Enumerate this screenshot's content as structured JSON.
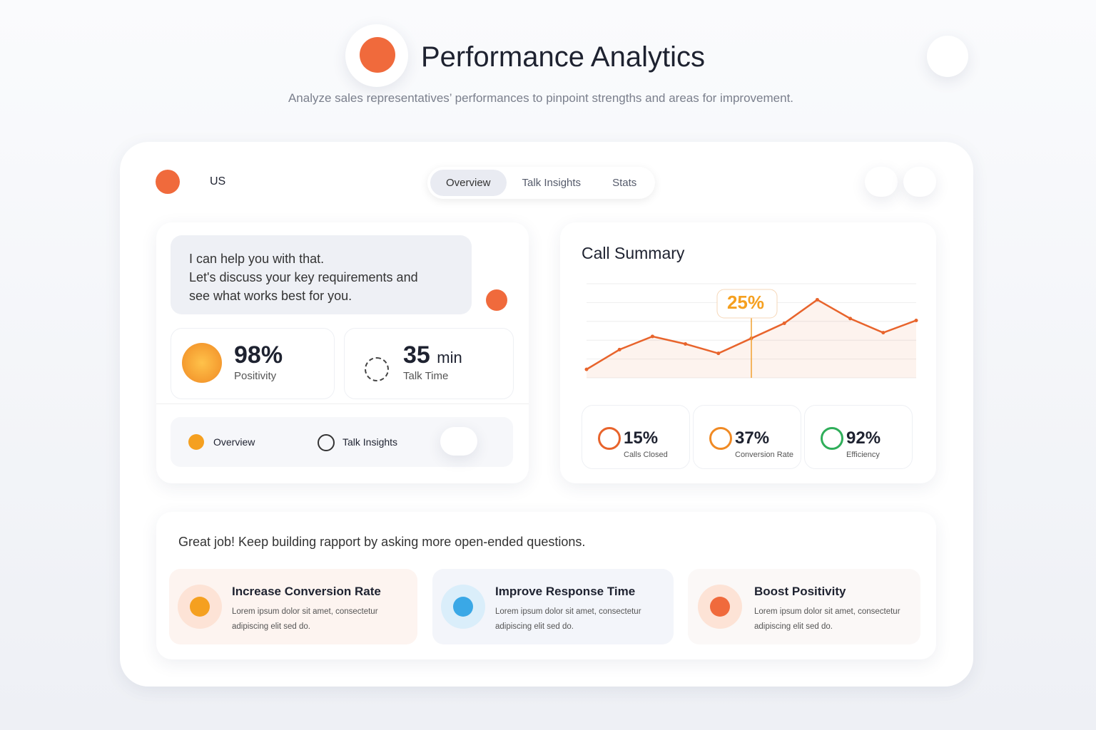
{
  "header": {
    "title": "Performance Analytics",
    "subtitle": "Analyze sales representatives’ performances to pinpoint strengths and areas for improvement."
  },
  "nav": {
    "brand": "US",
    "tabs": [
      "Overview",
      "Talk Insights",
      "Stats"
    ]
  },
  "chat": {
    "lines": [
      "I can help you with that.",
      "Let's discuss your key requirements and",
      "see what works best for you."
    ]
  },
  "stats": [
    {
      "value": "98%",
      "label": "Positivity"
    },
    {
      "value": "35",
      "unit": "min",
      "label": "Talk Time"
    }
  ],
  "quick_links": [
    "Overview",
    "Talk Insights"
  ],
  "call_summary": {
    "type": "line",
    "title": "Call Summary",
    "values": [
      9,
      30,
      44,
      36,
      26,
      42,
      58,
      83,
      63,
      48,
      61
    ],
    "ylim": [
      0,
      100
    ],
    "color": "#e8642c",
    "annotation": "25%"
  },
  "metrics": [
    {
      "value": "15%",
      "label": "Calls Closed",
      "color": "#e8642c"
    },
    {
      "value": "37%",
      "label": "Conversion Rate",
      "color": "#f08a24"
    },
    {
      "value": "92%",
      "label": "Efficiency",
      "color": "#2fae5a"
    }
  ],
  "feedback": {
    "message": "Great job! Keep building rapport by asking more open-ended questions.",
    "cards": [
      {
        "title": "Increase Conversion Rate",
        "text": "Lorem ipsum dolor sit amet, consectetur adipiscing elit sed do."
      },
      {
        "title": "Improve Response Time",
        "text": "Lorem ipsum dolor sit amet, consectetur adipiscing elit sed do."
      },
      {
        "title": "Boost Positivity",
        "text": "Lorem ipsum dolor sit amet, consectetur adipiscing elit sed do."
      }
    ]
  }
}
